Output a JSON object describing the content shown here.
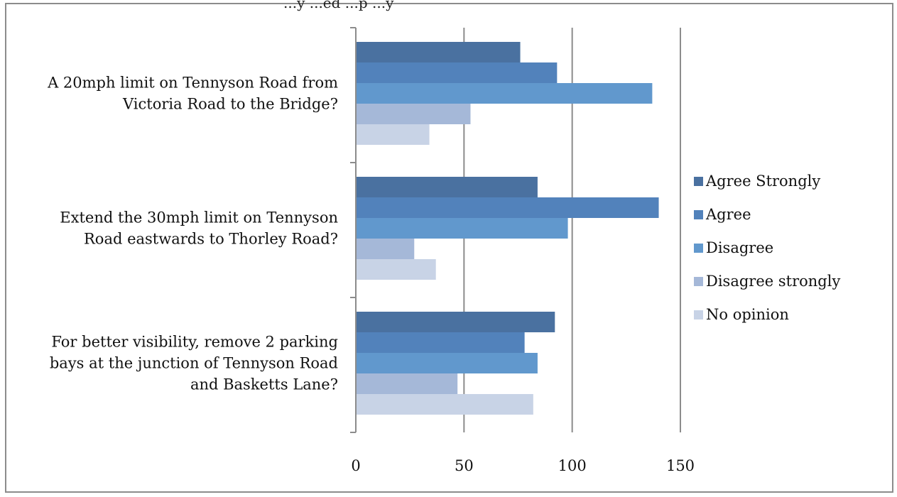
{
  "top_label": "...y ...ed ...p ...y",
  "colors": {
    "agree_strongly": "#4a71a0",
    "agree": "#5282bb",
    "disagree": "#6198cd",
    "disagree_strongly": "#a5b8d8",
    "no_opinion": "#c8d3e6",
    "grid": "#8c8c8c"
  },
  "chart_data": {
    "type": "bar",
    "orientation": "horizontal",
    "categories": [
      "A 20mph limit on Tennyson Road from Victoria Road to the Bridge?",
      "Extend the 30mph limit on Tennyson Road eastwards to Thorley Road?",
      "For better visibility,  remove 2 parking bays at the junction of Tennyson Road and Basketts Lane?"
    ],
    "category_lines": [
      [
        "A 20mph limit on Tennyson Road from",
        "Victoria Road to the Bridge?"
      ],
      [
        "Extend the 30mph limit on Tennyson",
        "Road eastwards to Thorley Road?"
      ],
      [
        "For better visibility,  remove 2 parking",
        "bays at the junction of Tennyson Road",
        "and Basketts Lane?"
      ]
    ],
    "series": [
      {
        "name": "Agree Strongly",
        "color": "#4a71a0",
        "values": [
          76,
          84,
          92
        ]
      },
      {
        "name": "Agree",
        "color": "#5282bb",
        "values": [
          93,
          140,
          78
        ]
      },
      {
        "name": "Disagree",
        "color": "#6198cd",
        "values": [
          137,
          98,
          84
        ]
      },
      {
        "name": "Disagree strongly",
        "color": "#a5b8d8",
        "values": [
          53,
          27,
          47
        ]
      },
      {
        "name": "No opinion",
        "color": "#c8d3e6",
        "values": [
          34,
          37,
          82
        ]
      }
    ],
    "xlim": [
      0,
      150
    ],
    "xticks": [
      "0",
      "50",
      "100",
      "150"
    ],
    "grid": true,
    "legend_position": "right"
  }
}
